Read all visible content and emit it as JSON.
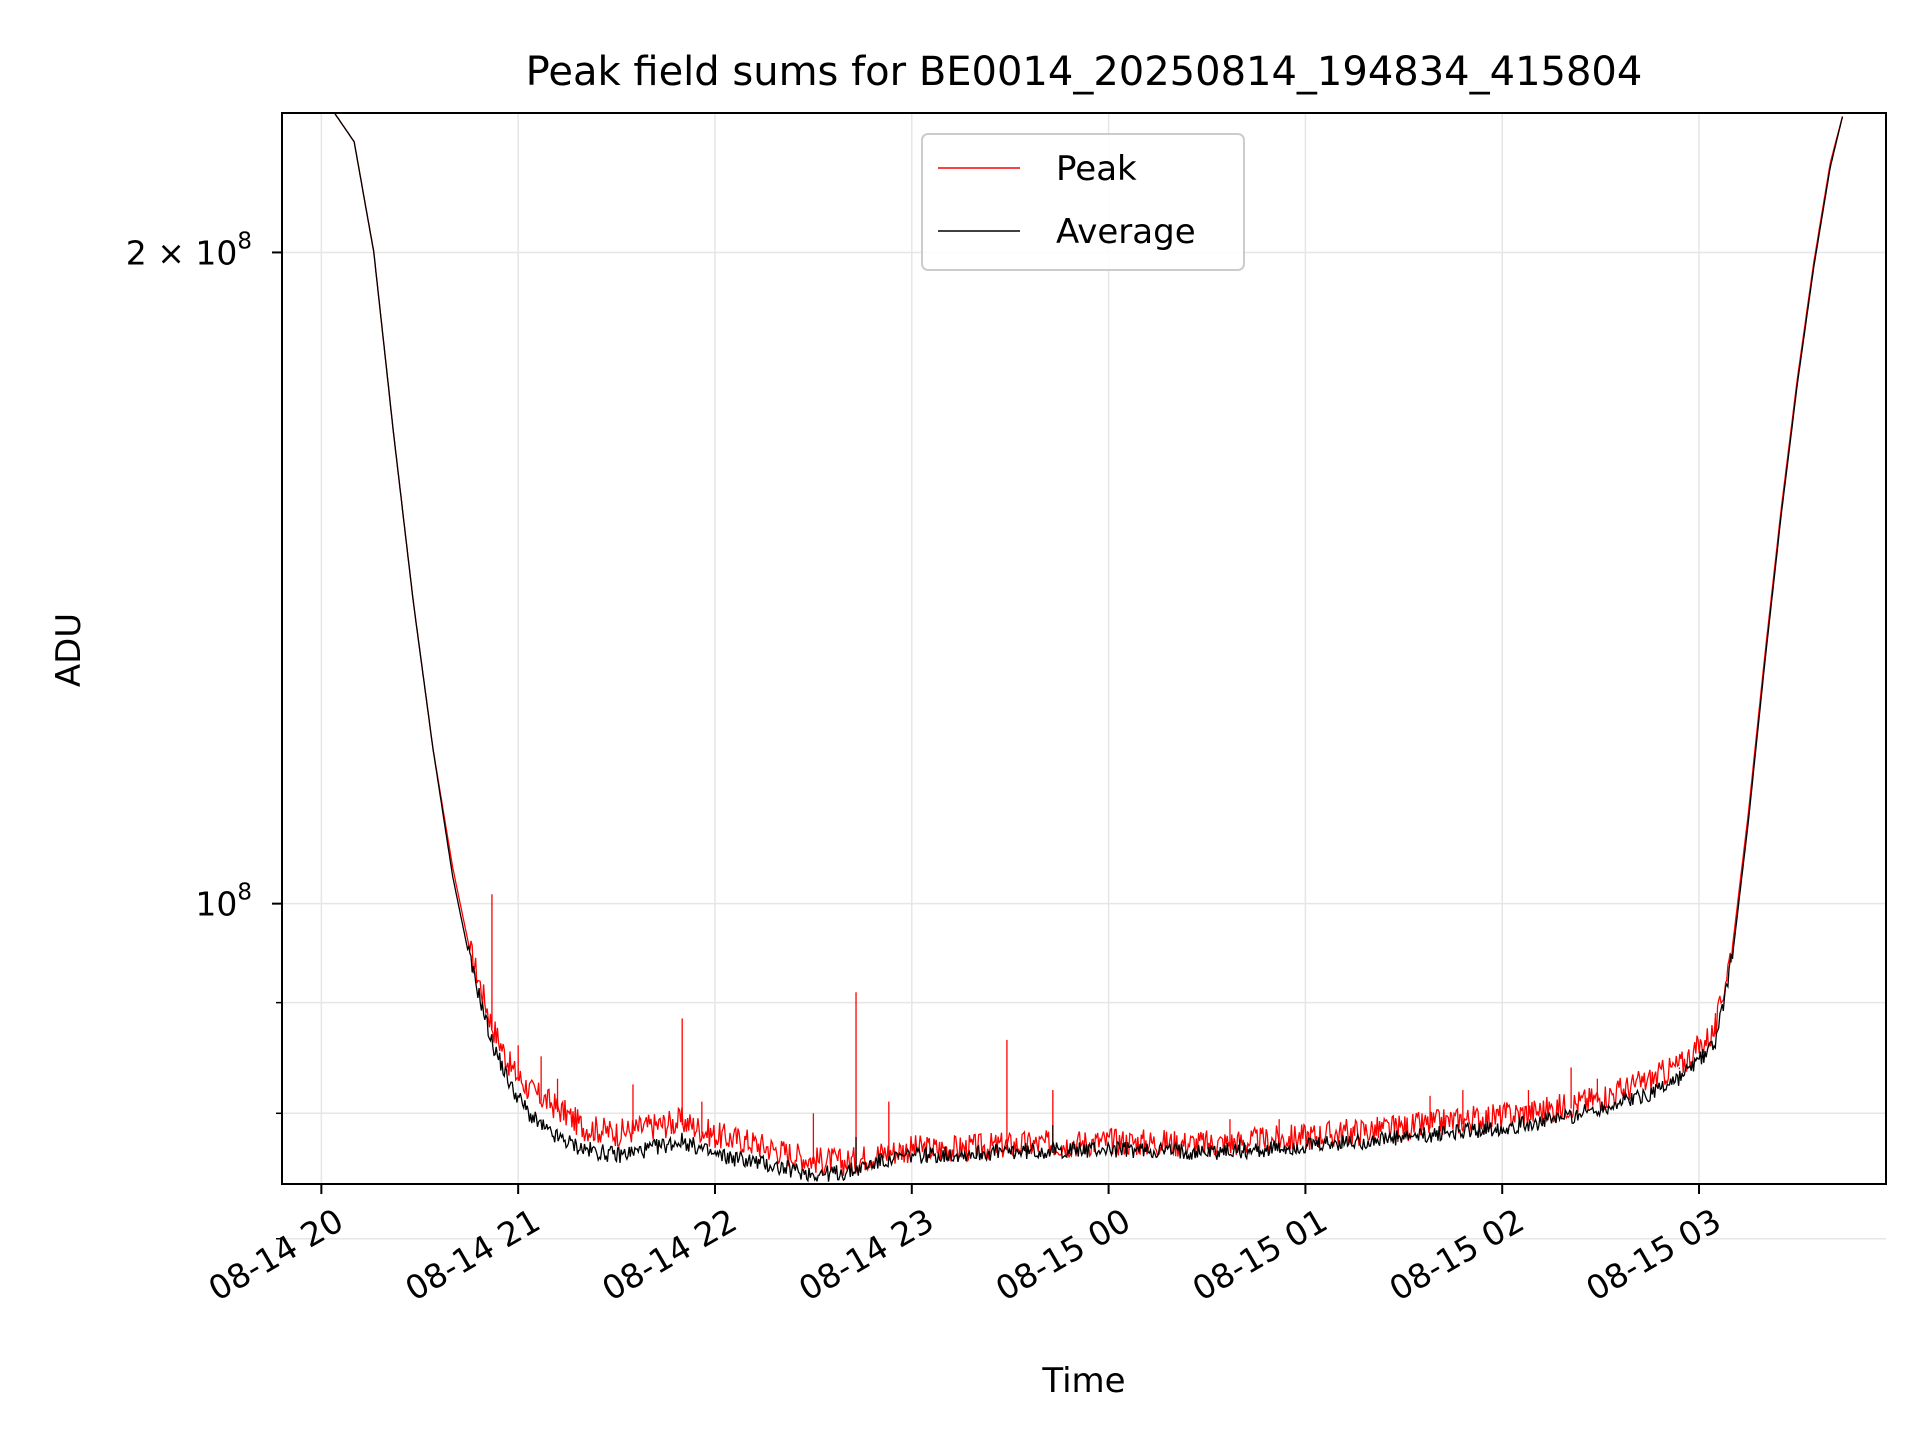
{
  "chart_data": {
    "type": "line",
    "title": "Peak field sums for BE0014_20250814_194834_415804",
    "xlabel": "Time",
    "ylabel": "ADU",
    "x_unit": "timestamp",
    "xlim": [
      "2025-08-14 19:48",
      "2025-08-15 03:57"
    ],
    "ylim": [
      74200000,
      232000000
    ],
    "yscale": "log",
    "grid": true,
    "legend_position": "top-center",
    "x_ticks": [
      {
        "value": "2025-08-14 20:00",
        "label": "08-14 20"
      },
      {
        "value": "2025-08-14 21:00",
        "label": "08-14 21"
      },
      {
        "value": "2025-08-14 22:00",
        "label": "08-14 22"
      },
      {
        "value": "2025-08-14 23:00",
        "label": "08-14 23"
      },
      {
        "value": "2025-08-15 00:00",
        "label": "08-15 00"
      },
      {
        "value": "2025-08-15 01:00",
        "label": "08-15 01"
      },
      {
        "value": "2025-08-15 02:00",
        "label": "08-15 02"
      },
      {
        "value": "2025-08-15 03:00",
        "label": "08-15 03"
      }
    ],
    "y_major_ticks": [
      {
        "value": 100000000,
        "label_base": "10",
        "label_exp": "8"
      },
      {
        "value": 200000000,
        "label_base": "2 × 10",
        "label_exp": "8"
      }
    ],
    "y_minor_ticks": [
      70000000,
      80000000,
      90000000
    ],
    "series": [
      {
        "name": "Peak",
        "color": "#ff0000",
        "x": [
          "2025-08-14 19:48",
          "2025-08-14 20:04",
          "2025-08-14 20:10",
          "2025-08-14 20:16",
          "2025-08-14 20:22",
          "2025-08-14 20:28",
          "2025-08-14 20:34",
          "2025-08-14 20:40",
          "2025-08-14 20:46",
          "2025-08-14 20:52",
          "2025-08-14 20:58",
          "2025-08-14 21:04",
          "2025-08-14 21:10",
          "2025-08-14 21:20",
          "2025-08-14 21:30",
          "2025-08-14 21:40",
          "2025-08-14 21:50",
          "2025-08-14 22:00",
          "2025-08-14 22:10",
          "2025-08-14 22:20",
          "2025-08-14 22:30",
          "2025-08-14 22:40",
          "2025-08-14 22:50",
          "2025-08-14 23:00",
          "2025-08-14 23:15",
          "2025-08-14 23:30",
          "2025-08-14 23:45",
          "2025-08-15 00:00",
          "2025-08-15 00:15",
          "2025-08-15 00:30",
          "2025-08-15 00:45",
          "2025-08-15 01:00",
          "2025-08-15 01:15",
          "2025-08-15 01:30",
          "2025-08-15 01:45",
          "2025-08-15 02:00",
          "2025-08-15 02:15",
          "2025-08-15 02:30",
          "2025-08-15 02:45",
          "2025-08-15 02:55",
          "2025-08-15 03:05",
          "2025-08-15 03:10",
          "2025-08-15 03:15",
          "2025-08-15 03:20",
          "2025-08-15 03:25",
          "2025-08-15 03:30",
          "2025-08-15 03:35",
          "2025-08-15 03:40",
          "2025-08-15 03:44"
        ],
        "y": [
          232000000,
          232000000,
          225000000,
          200000000,
          165000000,
          138000000,
          118000000,
          104000000,
          94000000,
          87500000,
          83500000,
          81500000,
          80500000,
          78500000,
          78000000,
          78500000,
          79000000,
          77800000,
          77300000,
          76500000,
          75800000,
          75600000,
          76300000,
          76700000,
          76700000,
          77000000,
          77100000,
          77300000,
          77200000,
          77100000,
          77300000,
          77700000,
          78100000,
          78400000,
          79000000,
          79400000,
          80000000,
          81000000,
          82500000,
          84000000,
          87000000,
          95000000,
          110000000,
          130000000,
          152000000,
          175000000,
          198000000,
          220000000,
          232000000
        ]
      },
      {
        "name": "Average",
        "color": "#000000",
        "x": [
          "2025-08-14 19:48",
          "2025-08-14 20:04",
          "2025-08-14 20:10",
          "2025-08-14 20:16",
          "2025-08-14 20:22",
          "2025-08-14 20:28",
          "2025-08-14 20:34",
          "2025-08-14 20:40",
          "2025-08-14 20:46",
          "2025-08-14 20:52",
          "2025-08-14 20:58",
          "2025-08-14 21:04",
          "2025-08-14 21:10",
          "2025-08-14 21:20",
          "2025-08-14 21:30",
          "2025-08-14 21:40",
          "2025-08-14 21:50",
          "2025-08-14 22:00",
          "2025-08-14 22:10",
          "2025-08-14 22:20",
          "2025-08-14 22:30",
          "2025-08-14 22:40",
          "2025-08-14 22:50",
          "2025-08-14 23:00",
          "2025-08-14 23:15",
          "2025-08-14 23:30",
          "2025-08-14 23:45",
          "2025-08-15 00:00",
          "2025-08-15 00:15",
          "2025-08-15 00:30",
          "2025-08-15 00:45",
          "2025-08-15 01:00",
          "2025-08-15 01:15",
          "2025-08-15 01:30",
          "2025-08-15 01:45",
          "2025-08-15 02:00",
          "2025-08-15 02:15",
          "2025-08-15 02:30",
          "2025-08-15 02:45",
          "2025-08-15 02:55",
          "2025-08-15 03:05",
          "2025-08-15 03:10",
          "2025-08-15 03:15",
          "2025-08-15 03:20",
          "2025-08-15 03:25",
          "2025-08-15 03:30",
          "2025-08-15 03:35",
          "2025-08-15 03:40",
          "2025-08-15 03:44"
        ],
        "y": [
          232000000,
          232000000,
          225000000,
          200000000,
          165000000,
          138000000,
          118000000,
          103000000,
          93000000,
          86000000,
          82000000,
          79500000,
          78000000,
          76800000,
          76300000,
          76800000,
          77500000,
          76300000,
          75900000,
          75300000,
          74800000,
          74900000,
          75800000,
          76300000,
          76400000,
          76600000,
          76700000,
          76800000,
          76700000,
          76600000,
          76700000,
          77000000,
          77400000,
          77700000,
          78200000,
          78600000,
          79200000,
          80200000,
          81500000,
          83000000,
          86000000,
          94000000,
          109000000,
          129000000,
          151000000,
          174000000,
          197000000,
          219000000,
          232000000
        ]
      }
    ],
    "peak_spikes": [
      {
        "x": "2025-08-14 20:52",
        "y": 101000000
      },
      {
        "x": "2025-08-14 21:00",
        "y": 86000000
      },
      {
        "x": "2025-08-14 21:07",
        "y": 85000000
      },
      {
        "x": "2025-08-14 21:12",
        "y": 83000000
      },
      {
        "x": "2025-08-14 21:35",
        "y": 82500000
      },
      {
        "x": "2025-08-14 21:50",
        "y": 88500000
      },
      {
        "x": "2025-08-14 21:56",
        "y": 81000000
      },
      {
        "x": "2025-08-14 22:30",
        "y": 80000000
      },
      {
        "x": "2025-08-14 22:43",
        "y": 91000000
      },
      {
        "x": "2025-08-14 22:53",
        "y": 81000000
      },
      {
        "x": "2025-08-14 23:29",
        "y": 86500000
      },
      {
        "x": "2025-08-14 23:43",
        "y": 82000000
      },
      {
        "x": "2025-08-15 00:37",
        "y": 79500000
      },
      {
        "x": "2025-08-15 00:52",
        "y": 79500000
      },
      {
        "x": "2025-08-15 01:15",
        "y": 79000000
      },
      {
        "x": "2025-08-15 01:38",
        "y": 81500000
      },
      {
        "x": "2025-08-15 01:48",
        "y": 82000000
      },
      {
        "x": "2025-08-15 02:08",
        "y": 82000000
      },
      {
        "x": "2025-08-15 02:21",
        "y": 84000000
      },
      {
        "x": "2025-08-15 02:29",
        "y": 83000000
      },
      {
        "x": "2025-08-15 02:54",
        "y": 84000000
      },
      {
        "x": "2025-08-15 03:05",
        "y": 89000000
      }
    ],
    "average_spikes": [
      {
        "x": "2025-08-14 22:43",
        "y": 78000000
      },
      {
        "x": "2025-08-14 23:43",
        "y": 79000000
      },
      {
        "x": "2025-08-15 00:40",
        "y": 77800000
      }
    ]
  }
}
